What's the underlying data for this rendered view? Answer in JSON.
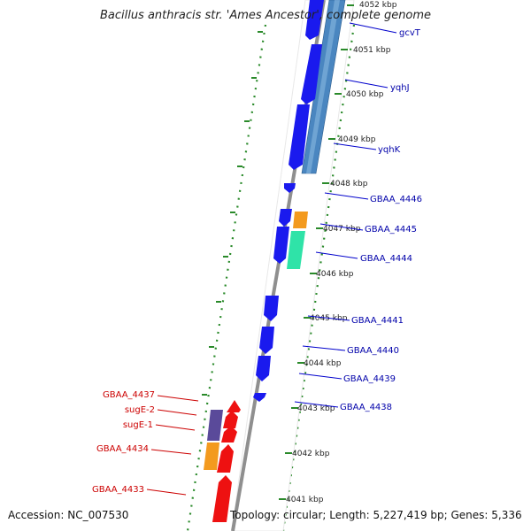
{
  "title": "Bacillus anthracis str. 'Ames Ancestor', complete genome",
  "footer": {
    "accession": "Accession: NC_007530",
    "topology": "Topology: circular; Length: 5,227,419 bp; Genes: 5,336"
  },
  "colors": {
    "forward_cds": "#1a1aee",
    "reverse_cds": "#ee1111",
    "backbone": "#9a9a9a",
    "dotted_track": "#2a8a2a",
    "tick": "#2a8a2a",
    "label_forward": "#0000aa",
    "label_reverse": "#cc0000",
    "blast_hit": "#4a86c0",
    "orange_feature": "#f39a1e",
    "teal_feature": "#2fe3a8",
    "purple_feature": "#5a4a9a"
  },
  "ticks": [
    "4052 kbp",
    "4051 kbp",
    "4050 kbp",
    "4049 kbp",
    "4048 kbp",
    "4047 kbp",
    "4046 kbp",
    "4045 kbp",
    "4044 kbp",
    "4043 kbp",
    "4042 kbp",
    "4041 kbp"
  ],
  "genes_forward": [
    "gcvT",
    "yqhJ",
    "yqhK",
    "GBAA_4446",
    "GBAA_4445",
    "GBAA_4444",
    "GBAA_4441",
    "GBAA_4440",
    "GBAA_4439",
    "GBAA_4438"
  ],
  "genes_reverse": [
    "GBAA_4437",
    "sugE-2",
    "sugE-1",
    "GBAA_4434",
    "GBAA_4433"
  ]
}
